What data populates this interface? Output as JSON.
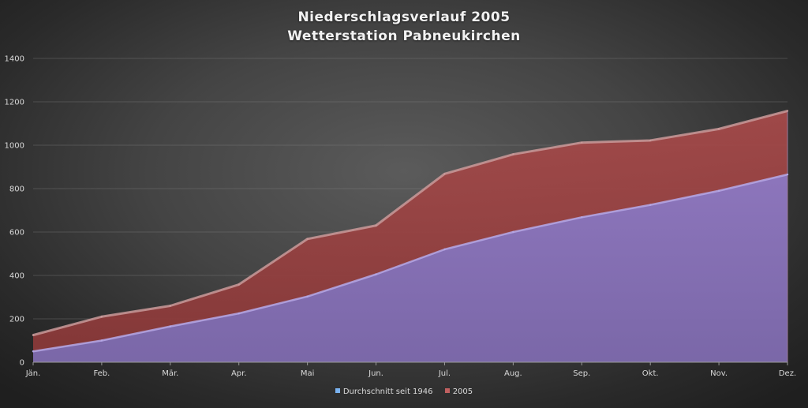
{
  "chart_data": {
    "type": "area",
    "title_line1": "Niederschlagsverlauf 2005",
    "title_line2": "Wetterstation Pabneukirchen",
    "categories": [
      "Jän.",
      "Feb.",
      "Mär.",
      "Apr.",
      "Mai",
      "Jun.",
      "Jul.",
      "Aug.",
      "Sep.",
      "Okt.",
      "Nov.",
      "Dez."
    ],
    "ylim": [
      0,
      1400
    ],
    "yticks": [
      0,
      200,
      400,
      600,
      800,
      1000,
      1200,
      1400
    ],
    "grid": true,
    "legend_position": "bottom",
    "series": [
      {
        "name": "Durchschnitt seit 1946",
        "color": "#8a78c8",
        "values": [
          50,
          100,
          165,
          225,
          303,
          405,
          520,
          600,
          668,
          725,
          790,
          865
        ]
      },
      {
        "name": "2005",
        "color": "#b04848",
        "values": [
          125,
          210,
          260,
          358,
          568,
          630,
          868,
          958,
          1012,
          1022,
          1075,
          1158
        ]
      }
    ]
  }
}
